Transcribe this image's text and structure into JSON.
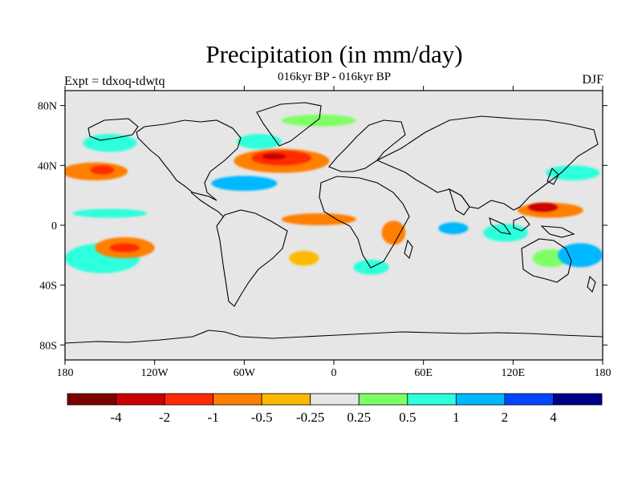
{
  "header": {
    "title": "Precipitation (in mm/day)",
    "subtitle": "016kyr BP - 016kyr BP",
    "left_label": "Expt = tdxoq-tdwtq",
    "right_label": "DJF"
  },
  "map": {
    "projection": "cylindrical-equidistant",
    "lon_range": [
      -180,
      180
    ],
    "lat_range": [
      -90,
      90
    ],
    "background": "#e6e6e6",
    "lat_ticks": [
      {
        "value": 80,
        "label": "80N"
      },
      {
        "value": 40,
        "label": "40N"
      },
      {
        "value": 0,
        "label": "0"
      },
      {
        "value": -40,
        "label": "40S"
      },
      {
        "value": -80,
        "label": "80S"
      }
    ],
    "lon_ticks": [
      {
        "value": -180,
        "label": "180"
      },
      {
        "value": -120,
        "label": "120W"
      },
      {
        "value": -60,
        "label": "60W"
      },
      {
        "value": 0,
        "label": "0"
      },
      {
        "value": 60,
        "label": "60E"
      },
      {
        "value": 120,
        "label": "120E"
      },
      {
        "value": 180,
        "label": "180"
      }
    ],
    "anomaly_patches": [
      {
        "name": "north-pacific-dry",
        "lon": -160,
        "lat": 36,
        "rx": 22,
        "ry": 6,
        "color": "#ff7f00"
      },
      {
        "name": "north-pacific-core",
        "lon": -155,
        "lat": 37,
        "rx": 8,
        "ry": 3,
        "color": "#ff2a00"
      },
      {
        "name": "north-pacific-wet",
        "lon": -150,
        "lat": 55,
        "rx": 18,
        "ry": 6,
        "color": "#2effdc"
      },
      {
        "name": "north-atlantic-wet",
        "lon": -50,
        "lat": 56,
        "rx": 15,
        "ry": 5,
        "color": "#2effdc"
      },
      {
        "name": "north-atlantic-dry",
        "lon": -35,
        "lat": 43,
        "rx": 32,
        "ry": 8,
        "color": "#ff7f00"
      },
      {
        "name": "north-atlantic-core",
        "lon": -35,
        "lat": 45,
        "rx": 20,
        "ry": 5,
        "color": "#ff2a00"
      },
      {
        "name": "north-atlantic-deep",
        "lon": -40,
        "lat": 46,
        "rx": 8,
        "ry": 2,
        "color": "#c90000"
      },
      {
        "name": "gulf-stream-wet",
        "lon": -60,
        "lat": 28,
        "rx": 22,
        "ry": 5,
        "color": "#00b8ff"
      },
      {
        "name": "greenland-wet",
        "lon": -10,
        "lat": 70,
        "rx": 25,
        "ry": 4,
        "color": "#7fff66"
      },
      {
        "name": "central-pacific-wet",
        "lon": -150,
        "lat": 8,
        "rx": 25,
        "ry": 3,
        "color": "#2effdc"
      },
      {
        "name": "south-pacific-wet",
        "lon": -155,
        "lat": -22,
        "rx": 25,
        "ry": 10,
        "color": "#2effdc"
      },
      {
        "name": "south-pacific-dry",
        "lon": -140,
        "lat": -15,
        "rx": 20,
        "ry": 7,
        "color": "#ff7f00"
      },
      {
        "name": "south-pacific-core",
        "lon": -140,
        "lat": -15,
        "rx": 10,
        "ry": 3,
        "color": "#ff2a00"
      },
      {
        "name": "equatorial-atlantic-dry",
        "lon": -10,
        "lat": 4,
        "rx": 25,
        "ry": 4,
        "color": "#ff7f00"
      },
      {
        "name": "south-atlantic-dry",
        "lon": -20,
        "lat": -22,
        "rx": 10,
        "ry": 5,
        "color": "#ffb900"
      },
      {
        "name": "east-africa-dry",
        "lon": 40,
        "lat": -5,
        "rx": 8,
        "ry": 8,
        "color": "#ff7f00"
      },
      {
        "name": "indian-ocean-wet",
        "lon": 80,
        "lat": -2,
        "rx": 10,
        "ry": 4,
        "color": "#00b8ff"
      },
      {
        "name": "southern-africa-wet",
        "lon": 25,
        "lat": -28,
        "rx": 12,
        "ry": 5,
        "color": "#2effdc"
      },
      {
        "name": "maritime-continent-wet",
        "lon": 115,
        "lat": -5,
        "rx": 15,
        "ry": 6,
        "color": "#2effdc"
      },
      {
        "name": "west-pacific-dry",
        "lon": 145,
        "lat": 10,
        "rx": 22,
        "ry": 5,
        "color": "#ff7f00"
      },
      {
        "name": "west-pacific-core",
        "lon": 140,
        "lat": 12,
        "rx": 10,
        "ry": 3,
        "color": "#c90000"
      },
      {
        "name": "north-west-pacific-wet",
        "lon": 160,
        "lat": 35,
        "rx": 18,
        "ry": 5,
        "color": "#2effdc"
      },
      {
        "name": "australia-wet",
        "lon": 145,
        "lat": -22,
        "rx": 12,
        "ry": 6,
        "color": "#7fff66"
      },
      {
        "name": "south-west-pacific-wet",
        "lon": 165,
        "lat": -20,
        "rx": 15,
        "ry": 8,
        "color": "#00b8ff"
      }
    ]
  },
  "colorbar": {
    "colors": [
      "#7d0000",
      "#c90000",
      "#ff2a00",
      "#ff7f00",
      "#ffb900",
      "#e6e6e6",
      "#7fff66",
      "#2effdc",
      "#00b8ff",
      "#0046ff",
      "#000087"
    ],
    "labels": [
      "-4",
      "-2",
      "-1",
      "-0.5",
      "-0.25",
      "0.25",
      "0.5",
      "1",
      "2",
      "4"
    ]
  }
}
